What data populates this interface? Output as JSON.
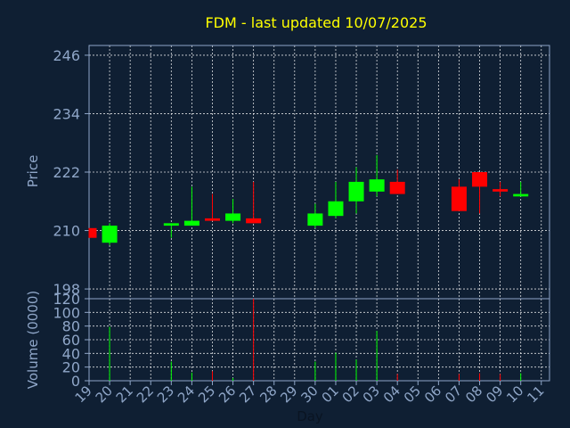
{
  "chart_data": {
    "type": "candlestick",
    "title": "FDM - last updated 10/07/2025",
    "xlabel": "Day",
    "colors": {
      "background": "#0f1f33",
      "axis": "#8fa6c8",
      "grid": "#ffffff",
      "title": "#ffff00",
      "up": "#00ff00",
      "down": "#ff0000"
    },
    "x_ticks": [
      "19",
      "20",
      "21",
      "22",
      "23",
      "24",
      "25",
      "26",
      "27",
      "28",
      "29",
      "30",
      "01",
      "02",
      "03",
      "04",
      "05",
      "06",
      "07",
      "08",
      "09",
      "10",
      "11"
    ],
    "price_panel": {
      "ylabel": "Price",
      "ylim": [
        196,
        248
      ],
      "yticks": [
        198,
        210,
        222,
        234,
        246
      ]
    },
    "volume_panel": {
      "ylabel": "Volume (0000)",
      "ylim": [
        0,
        120
      ],
      "yticks": [
        0,
        20,
        40,
        60,
        80,
        100,
        120
      ]
    },
    "candles": [
      {
        "day": "19",
        "open": 210.5,
        "high": 210.5,
        "low": 208.5,
        "close": 208.5,
        "volume": 0
      },
      {
        "day": "20",
        "open": 207.5,
        "high": 211.5,
        "low": 207.0,
        "close": 211.0,
        "volume": 79
      },
      {
        "day": "23",
        "open": 211.0,
        "high": 211.5,
        "low": 208.5,
        "close": 211.5,
        "volume": 28
      },
      {
        "day": "24",
        "open": 211.0,
        "high": 219.0,
        "low": 211.0,
        "close": 212.0,
        "volume": 12
      },
      {
        "day": "25",
        "open": 212.5,
        "high": 217.5,
        "low": 212.0,
        "close": 212.0,
        "volume": 14
      },
      {
        "day": "26",
        "open": 212.0,
        "high": 216.5,
        "low": 211.5,
        "close": 213.5,
        "volume": 4
      },
      {
        "day": "27",
        "open": 212.5,
        "high": 220.0,
        "low": 211.5,
        "close": 211.5,
        "volume": 120
      },
      {
        "day": "30",
        "open": 211.0,
        "high": 215.5,
        "low": 210.5,
        "close": 213.5,
        "volume": 28
      },
      {
        "day": "01",
        "open": 213.0,
        "high": 220.0,
        "low": 212.5,
        "close": 216.0,
        "volume": 41
      },
      {
        "day": "02",
        "open": 216.0,
        "high": 223.0,
        "low": 213.5,
        "close": 220.0,
        "volume": 31
      },
      {
        "day": "03",
        "open": 218.0,
        "high": 225.5,
        "low": 217.0,
        "close": 220.5,
        "volume": 73
      },
      {
        "day": "04",
        "open": 220.0,
        "high": 222.5,
        "low": 217.5,
        "close": 217.5,
        "volume": 10
      },
      {
        "day": "07",
        "open": 219.0,
        "high": 220.5,
        "low": 214.0,
        "close": 214.0,
        "volume": 10
      },
      {
        "day": "08",
        "open": 222.0,
        "high": 222.0,
        "low": 213.5,
        "close": 219.0,
        "volume": 11
      },
      {
        "day": "09",
        "open": 218.5,
        "high": 220.0,
        "low": 217.0,
        "close": 218.0,
        "volume": 10
      },
      {
        "day": "10",
        "open": 217.0,
        "high": 220.0,
        "low": 217.0,
        "close": 217.5,
        "volume": 11
      }
    ]
  }
}
